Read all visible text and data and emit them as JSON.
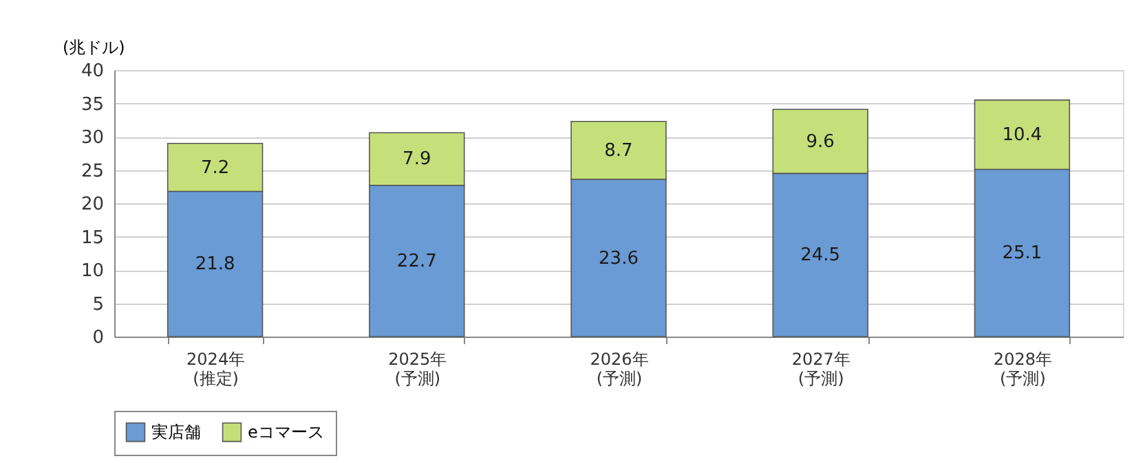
{
  "chart_data": {
    "type": "bar",
    "stacked": true,
    "ylabel": "(兆ドル)",
    "categories": [
      "2024年\n(推定)",
      "2025年\n(予測)",
      "2026年\n(予測)",
      "2027年\n(予測)",
      "2028年\n(予測)"
    ],
    "series": [
      {
        "name": "実店舗",
        "color": "#6a9bd4",
        "values": [
          21.8,
          22.7,
          23.6,
          24.5,
          25.1
        ]
      },
      {
        "name": "eコマース",
        "color": "#c5e07a",
        "values": [
          7.2,
          7.9,
          8.7,
          9.6,
          10.4
        ]
      }
    ],
    "ylim": [
      0,
      40
    ],
    "yticks": [
      0,
      5,
      10,
      15,
      20,
      25,
      30,
      35,
      40
    ],
    "grid": "y",
    "legend": "bottom",
    "data_labels": true
  }
}
